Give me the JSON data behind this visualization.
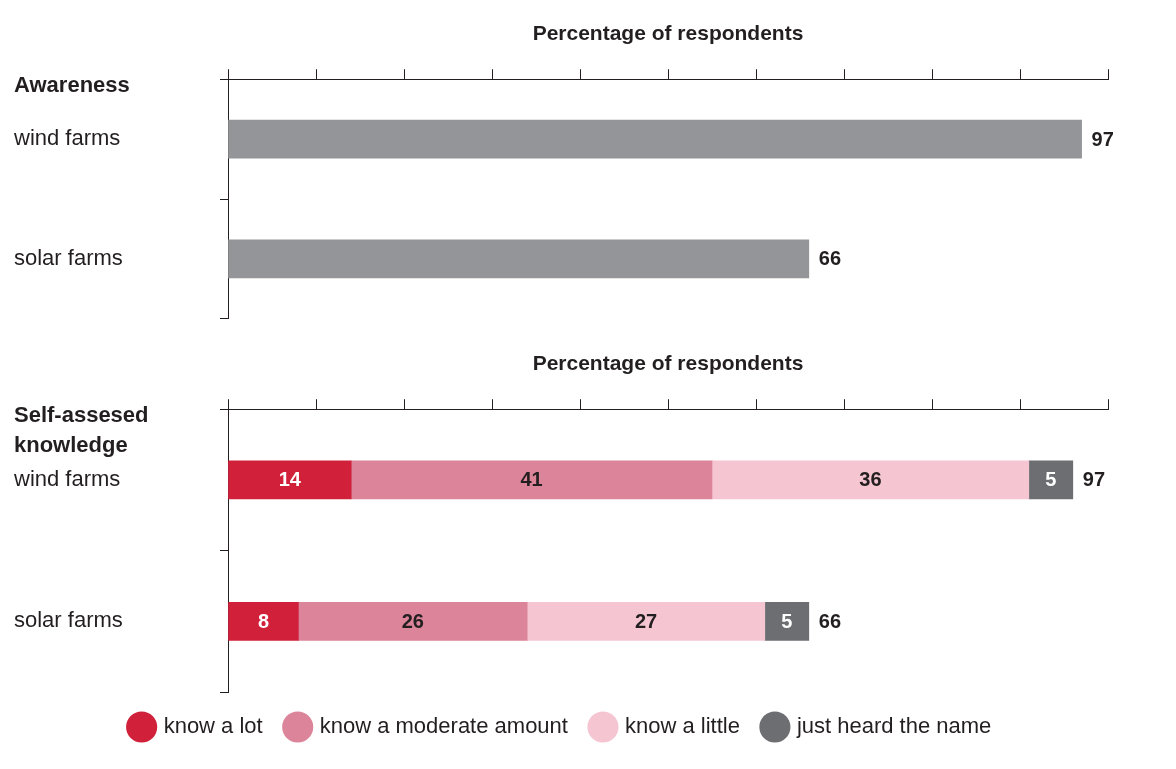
{
  "chart_data": [
    {
      "type": "bar",
      "title": "Awareness",
      "xlabel": "Percentage of respondents",
      "orientation": "horizontal",
      "categories": [
        "wind farms",
        "solar farms"
      ],
      "values": [
        97,
        66
      ],
      "color": "#939598",
      "xlim": [
        0,
        100
      ],
      "xticks": [
        {
          "value": 0,
          "label": null
        },
        {
          "value": 10,
          "label": null
        },
        {
          "value": 20,
          "label": null
        },
        {
          "value": 30,
          "label": null
        },
        {
          "value": 40,
          "label": null
        },
        {
          "value": 50,
          "label": null
        },
        {
          "value": 60,
          "label": null
        },
        {
          "value": 70,
          "label": null
        },
        {
          "value": 80,
          "label": null
        },
        {
          "value": 90,
          "label": null
        },
        {
          "value": 100,
          "label": null
        }
      ],
      "tick_labels": "y",
      "data_labels": true
    },
    {
      "type": "bar",
      "title": "Self-assesed knowledge",
      "xlabel": "Percentage of respondents",
      "orientation": "horizontal",
      "stacked": true,
      "categories": [
        "wind farms",
        "solar farms"
      ],
      "series": [
        {
          "name": "know a lot",
          "color": "#d0203a",
          "values": [
            14,
            8
          ]
        },
        {
          "name": "know a moderate amount",
          "color": "#dc8499",
          "values": [
            41,
            26
          ]
        },
        {
          "name": "know a little",
          "color": "#f5c6d2",
          "values": [
            36,
            27
          ]
        },
        {
          "name": "just heard the name",
          "color": "#6d6e72",
          "values": [
            5,
            5
          ]
        }
      ],
      "totals": [
        "97",
        "66"
      ],
      "xlim": [
        0,
        100
      ],
      "xticks": [
        {
          "value": 0,
          "label": null
        },
        {
          "value": 10,
          "label": null
        },
        {
          "value": 20,
          "label": null
        },
        {
          "value": 30,
          "label": null
        },
        {
          "value": 40,
          "label": null
        },
        {
          "value": 50,
          "label": null
        },
        {
          "value": 60,
          "label": null
        },
        {
          "value": 70,
          "label": null
        },
        {
          "value": 80,
          "label": null
        },
        {
          "value": 90,
          "label": null
        },
        {
          "value": 100,
          "label": null
        }
      ],
      "tick_labels": "y",
      "data_labels": true,
      "legend": "bottom"
    }
  ]
}
